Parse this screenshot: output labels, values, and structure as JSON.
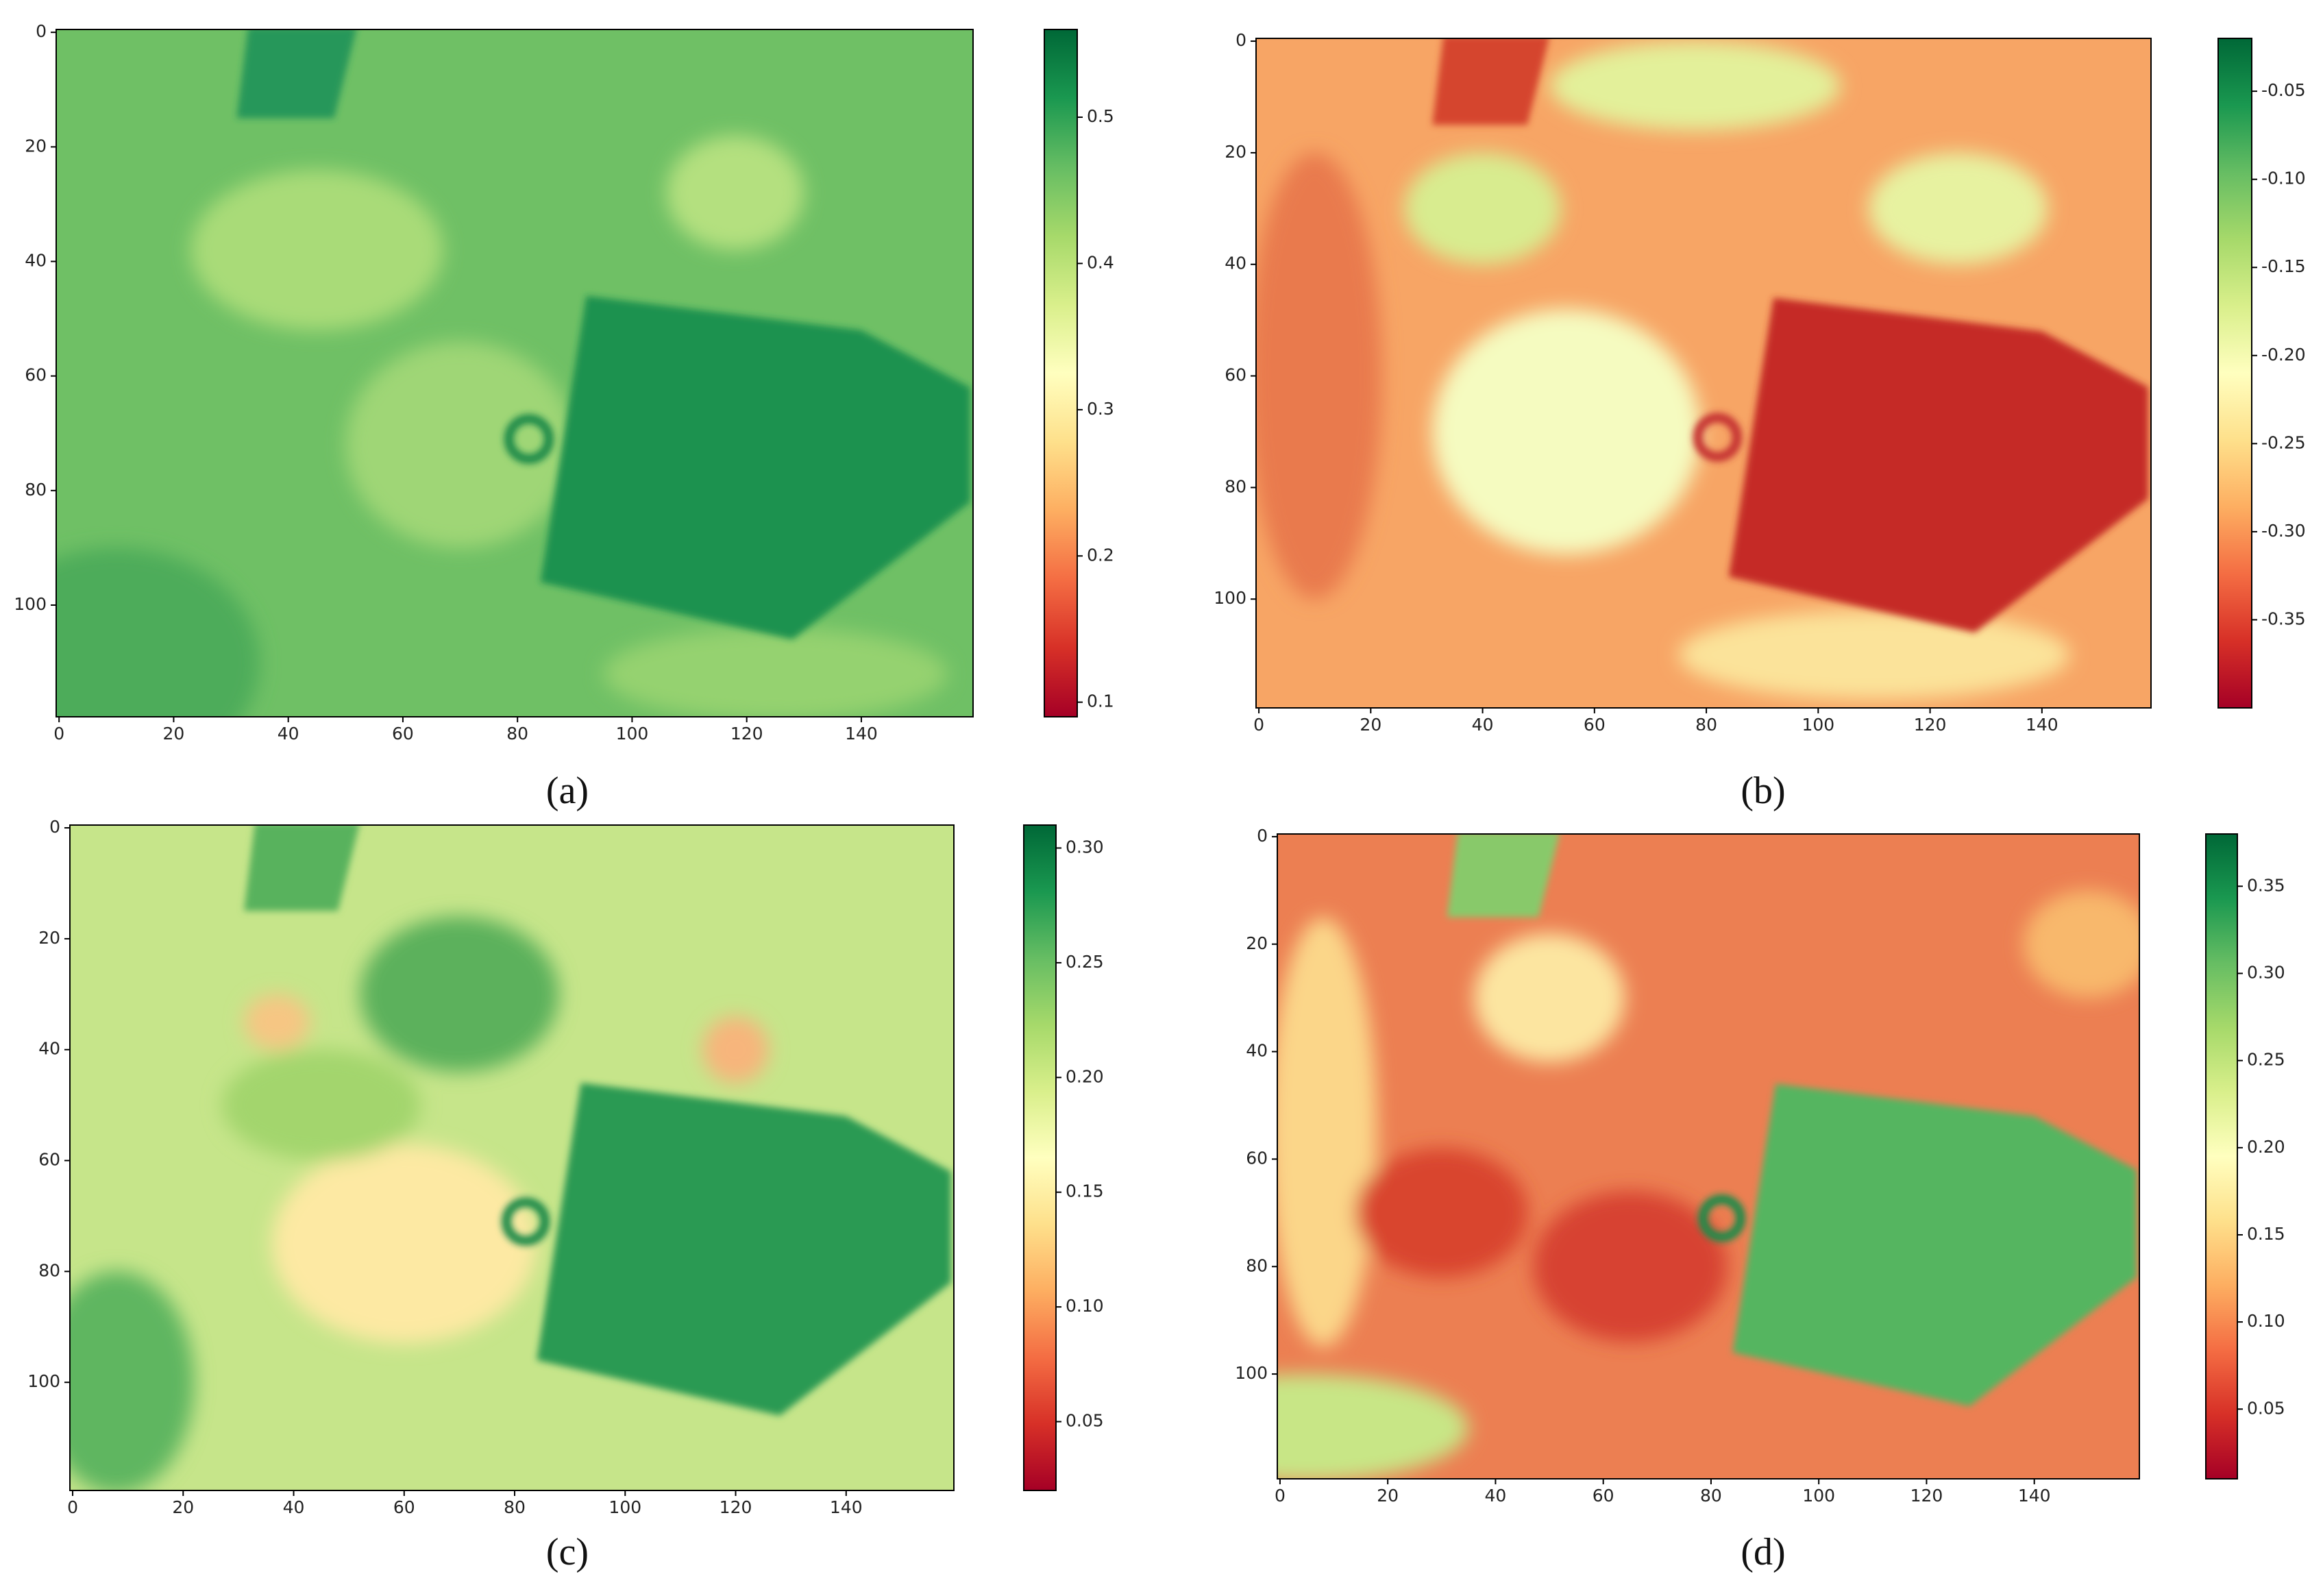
{
  "chart_data": [
    {
      "type": "heatmap",
      "label": "(a)",
      "colormap": "RdYlGn",
      "xlim": [
        -0.5,
        159.5
      ],
      "ylim": [
        119.5,
        -0.5
      ],
      "xticks": [
        0,
        20,
        40,
        60,
        80,
        100,
        120,
        140
      ],
      "yticks": [
        0,
        20,
        40,
        60,
        80,
        100
      ],
      "clim": [
        0.09,
        0.56
      ],
      "cticks": [
        0.1,
        0.2,
        0.3,
        0.4,
        0.5
      ]
    },
    {
      "type": "heatmap",
      "label": "(b)",
      "colormap": "RdYlGn",
      "xlim": [
        -0.5,
        159.5
      ],
      "ylim": [
        119.5,
        -0.5
      ],
      "xticks": [
        0,
        20,
        40,
        60,
        80,
        100,
        120,
        140
      ],
      "yticks": [
        0,
        20,
        40,
        60,
        80,
        100
      ],
      "clim": [
        -0.4,
        -0.02
      ],
      "cticks": [
        -0.35,
        {
          "value": -0.3,
          "label": "-0.30"
        },
        -0.25,
        {
          "value": -0.2,
          "label": "-0.20"
        },
        -0.15,
        {
          "value": -0.1,
          "label": "-0.10"
        },
        -0.05
      ]
    },
    {
      "type": "heatmap",
      "label": "(c)",
      "colormap": "RdYlGn",
      "xlim": [
        -0.5,
        159.5
      ],
      "ylim": [
        119.5,
        -0.5
      ],
      "xticks": [
        0,
        20,
        40,
        60,
        80,
        100,
        120,
        140
      ],
      "yticks": [
        0,
        20,
        40,
        60,
        80,
        100
      ],
      "clim": [
        0.02,
        0.31
      ],
      "cticks": [
        0.05,
        {
          "value": 0.1,
          "label": "0.10"
        },
        0.15,
        {
          "value": 0.2,
          "label": "0.20"
        },
        0.25,
        {
          "value": 0.3,
          "label": "0.30"
        }
      ]
    },
    {
      "type": "heatmap",
      "label": "(d)",
      "colormap": "RdYlGn",
      "xlim": [
        -0.5,
        159.5
      ],
      "ylim": [
        119.5,
        -0.5
      ],
      "xticks": [
        0,
        20,
        40,
        60,
        80,
        100,
        120,
        140
      ],
      "yticks": [
        0,
        20,
        40,
        60,
        80,
        100
      ],
      "clim": [
        0.01,
        0.38
      ],
      "cticks": [
        0.05,
        {
          "value": 0.1,
          "label": "0.10"
        },
        0.15,
        {
          "value": 0.2,
          "label": "0.20"
        },
        0.25,
        {
          "value": 0.3,
          "label": "0.30"
        },
        0.35
      ]
    }
  ]
}
